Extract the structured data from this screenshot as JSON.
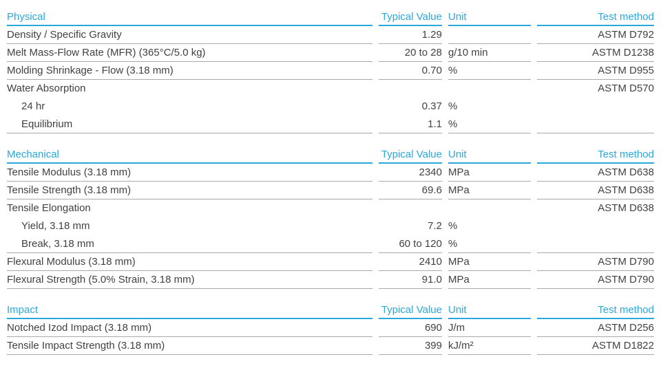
{
  "colors": {
    "accent": "#29a8dc",
    "text": "#414141",
    "line": "#a8a8a8"
  },
  "columns": {
    "typical_value": "Typical Value",
    "unit": "Unit",
    "test_method": "Test method"
  },
  "sections": [
    {
      "title": "Physical",
      "rows": [
        {
          "name": "Density / Specific Gravity",
          "value": "1.29",
          "unit": "",
          "method": "ASTM D792",
          "indent": false,
          "line": true
        },
        {
          "name": "Melt Mass-Flow Rate (MFR) (365°C/5.0 kg)",
          "value": "20 to 28",
          "unit": "g/10 min",
          "method": "ASTM D1238",
          "indent": false,
          "line": true
        },
        {
          "name": "Molding Shrinkage - Flow (3.18 mm)",
          "value": "0.70",
          "unit": "%",
          "method": "ASTM D955",
          "indent": false,
          "line": true
        },
        {
          "name": "Water Absorption",
          "value": "",
          "unit": "",
          "method": "ASTM D570",
          "indent": false,
          "line": false
        },
        {
          "name": "24 hr",
          "value": "0.37",
          "unit": "%",
          "method": "",
          "indent": true,
          "line": false
        },
        {
          "name": "Equilibrium",
          "value": "1.1",
          "unit": "%",
          "method": "",
          "indent": true,
          "line": true
        }
      ]
    },
    {
      "title": "Mechanical",
      "rows": [
        {
          "name": "Tensile Modulus (3.18 mm)",
          "value": "2340",
          "unit": "MPa",
          "method": "ASTM D638",
          "indent": false,
          "line": true
        },
        {
          "name": "Tensile Strength (3.18 mm)",
          "value": "69.6",
          "unit": "MPa",
          "method": "ASTM D638",
          "indent": false,
          "line": true
        },
        {
          "name": "Tensile Elongation",
          "value": "",
          "unit": "",
          "method": "ASTM D638",
          "indent": false,
          "line": false
        },
        {
          "name": "Yield, 3.18 mm",
          "value": "7.2",
          "unit": "%",
          "method": "",
          "indent": true,
          "line": false
        },
        {
          "name": "Break, 3.18 mm",
          "value": "60 to 120",
          "unit": "%",
          "method": "",
          "indent": true,
          "line": true
        },
        {
          "name": "Flexural Modulus (3.18 mm)",
          "value": "2410",
          "unit": "MPa",
          "method": "ASTM D790",
          "indent": false,
          "line": true
        },
        {
          "name": "Flexural Strength (5.0% Strain, 3.18 mm)",
          "value": "91.0",
          "unit": "MPa",
          "method": "ASTM D790",
          "indent": false,
          "line": true
        }
      ]
    },
    {
      "title": "Impact",
      "rows": [
        {
          "name": "Notched Izod Impact (3.18 mm)",
          "value": "690",
          "unit": "J/m",
          "method": "ASTM D256",
          "indent": false,
          "line": true
        },
        {
          "name": "Tensile Impact Strength (3.18 mm)",
          "value": "399",
          "unit": "kJ/m²",
          "method": "ASTM D1822",
          "indent": false,
          "line": true
        }
      ]
    }
  ]
}
